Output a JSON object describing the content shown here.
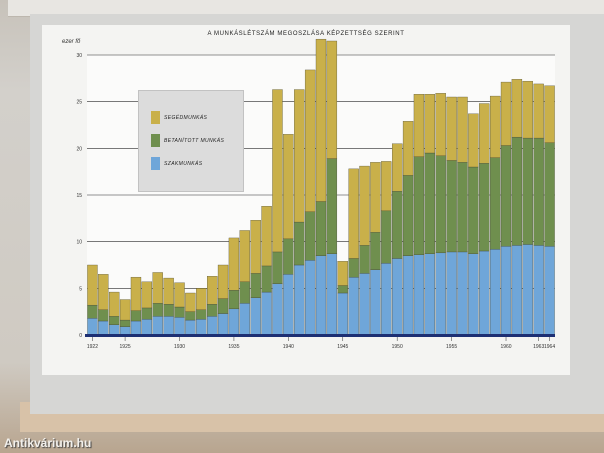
{
  "watermark": "Antikvárium.hu",
  "chart_data": {
    "type": "bar",
    "stacked": true,
    "title": "A MUNKÁSLÉTSZÁM MEGOSZLÁSA KÉPZETTSÉG SZERINT",
    "ylabel": "ezer fő",
    "xlabel": "",
    "ylim": [
      0,
      30
    ],
    "yticks": [
      "0",
      "5",
      "10",
      "15",
      "20",
      "25",
      "30"
    ],
    "grid": true,
    "legend_position": "top-left",
    "categories": [
      "1922",
      "1923",
      "1924",
      "1925",
      "1926",
      "1927",
      "1928",
      "1929",
      "1930",
      "1931",
      "1932",
      "1933",
      "1934",
      "1935",
      "1936",
      "1937",
      "1938",
      "1939",
      "1940",
      "1941",
      "1942",
      "1943",
      "1944",
      "1945",
      "1946",
      "1947",
      "1948",
      "1949",
      "1950",
      "1951",
      "1952",
      "1953",
      "1954",
      "1955",
      "1956",
      "1957",
      "1958",
      "1959",
      "1960",
      "1961",
      "1962",
      "1963",
      "1964"
    ],
    "xticks": [
      "1922",
      "1925",
      "1930",
      "1935",
      "1940",
      "1945",
      "1950",
      "1955",
      "1960",
      "1963",
      "1964"
    ],
    "colors": {
      "szakmunkas": "#6fa6d9",
      "betanitott": "#6f8f4e",
      "segedmunkas": "#c9b04a",
      "baseline": "#1d2f73"
    },
    "series": [
      {
        "name": "SZAKMUNKÁS",
        "values": [
          1.8,
          1.5,
          1.1,
          0.9,
          1.5,
          1.7,
          2.0,
          2.0,
          1.9,
          1.6,
          1.7,
          2.0,
          2.3,
          2.8,
          3.4,
          4.0,
          4.6,
          5.5,
          6.5,
          7.5,
          8.0,
          8.5,
          8.7,
          4.5,
          6.2,
          6.6,
          7.0,
          7.7,
          8.2,
          8.5,
          8.6,
          8.7,
          8.8,
          8.9,
          8.9,
          8.7,
          9.0,
          9.2,
          9.5,
          9.6,
          9.7,
          9.6,
          9.5
        ]
      },
      {
        "name": "BETANÍTOTT MUNKÁS",
        "values": [
          1.4,
          1.2,
          0.9,
          0.7,
          1.1,
          1.2,
          1.4,
          1.3,
          1.1,
          0.9,
          1.0,
          1.3,
          1.6,
          2.0,
          2.3,
          2.6,
          2.8,
          3.4,
          3.8,
          4.6,
          5.2,
          5.8,
          10.2,
          0.8,
          2.0,
          3.0,
          4.0,
          5.6,
          7.2,
          8.6,
          10.5,
          10.8,
          10.4,
          9.8,
          9.6,
          9.3,
          9.4,
          9.8,
          10.8,
          11.6,
          11.4,
          11.5,
          11.1
        ]
      },
      {
        "name": "SEGÉDMUNKÁS",
        "values": [
          4.3,
          3.8,
          2.6,
          2.2,
          3.6,
          2.8,
          3.3,
          2.8,
          2.6,
          2.0,
          2.3,
          3.0,
          3.6,
          5.6,
          5.5,
          5.7,
          6.4,
          17.4,
          11.2,
          14.2,
          15.2,
          17.4,
          12.6,
          2.6,
          9.6,
          8.5,
          7.5,
          5.3,
          5.1,
          5.8,
          6.7,
          6.3,
          6.7,
          6.8,
          7.0,
          5.7,
          6.4,
          6.6,
          6.8,
          6.2,
          6.1,
          5.8,
          6.1
        ]
      }
    ]
  }
}
